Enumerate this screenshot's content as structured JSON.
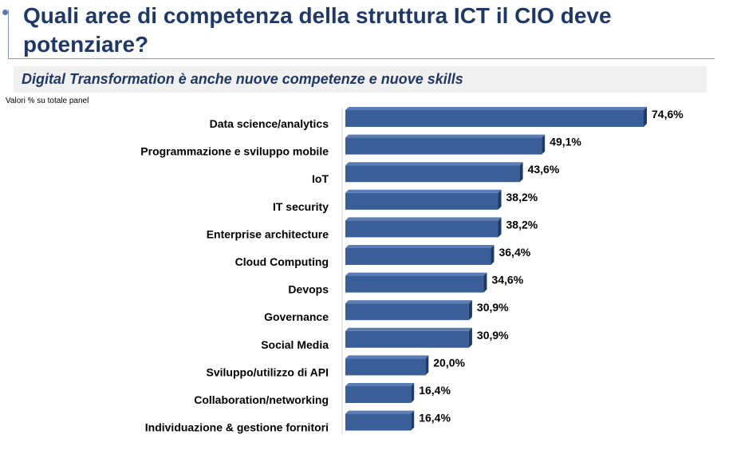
{
  "header": {
    "title": "Quali aree di competenza della struttura ICT il CIO deve potenziare?",
    "subtitle": "Digital Transformation è anche nuove competenze e nuove skills",
    "note": "Valori % su totale panel"
  },
  "colors": {
    "bar_front": "#3a5f98",
    "bar_top": "#5b7db5",
    "bar_side": "#1f3a66",
    "title": "#1f3864"
  },
  "chart_data": {
    "type": "bar",
    "orientation": "horizontal",
    "categories": [
      "Data science/analytics",
      "Programmazione e sviluppo mobile",
      "IoT",
      "IT security",
      "Enterprise architecture",
      "Cloud Computing",
      "Devops",
      "Governance",
      "Social Media",
      "Sviluppo/utilizzo di API",
      "Collaboration/networking",
      "Individuazione & gestione fornitori"
    ],
    "values": [
      74.6,
      49.1,
      43.6,
      38.2,
      38.2,
      36.4,
      34.6,
      30.9,
      30.9,
      20.0,
      16.4,
      16.4
    ],
    "value_labels": [
      "74,6%",
      "49,1%",
      "43,6%",
      "38,2%",
      "38,2%",
      "36,4%",
      "34,6%",
      "30,9%",
      "30,9%",
      "20,0%",
      "16,4%",
      "16,4%"
    ],
    "xlim": [
      0,
      80
    ],
    "grid": false,
    "legend": "none"
  }
}
